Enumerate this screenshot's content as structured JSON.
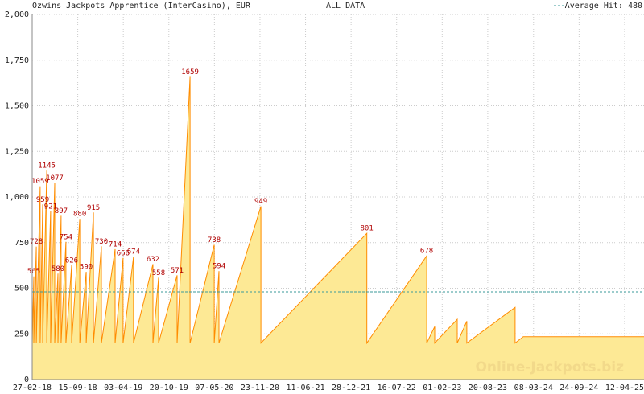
{
  "chart_data": {
    "type": "area",
    "title": "Ozwins Jackpots Apprentice (InterCasino), EUR",
    "subtitle": "ALL DATA",
    "watermark": "Online-Jackpots.biz",
    "average": {
      "value": 480,
      "label": "Average Hit: 480",
      "color": "#3a9a9a"
    },
    "line_color": "#ff8c00",
    "fill_color": "#fde995",
    "label_color": "#b00000",
    "grid": true,
    "ylim": [
      0,
      2000
    ],
    "yticks": [
      0,
      250,
      500,
      750,
      {
        "value": 1000,
        "label": "1,000"
      },
      {
        "value": 1250,
        "label": "1,250"
      },
      {
        "value": 1500,
        "label": "1,500"
      },
      {
        "value": 1750,
        "label": "1,750"
      },
      {
        "value": 2000,
        "label": "2,000"
      }
    ],
    "xlim": [
      "27-02-18",
      "06-07-25"
    ],
    "xticks": [
      "27-02-18",
      "15-09-18",
      "03-04-19",
      "20-10-19",
      "07-05-20",
      "23-11-20",
      "11-06-21",
      "28-12-21",
      "16-07-22",
      "01-02-23",
      "20-08-23",
      "08-03-24",
      "24-09-24",
      "12-04-25"
    ],
    "x": [
      "27-02-18",
      "06-03-18",
      "06-03-18",
      "17-03-18",
      "17-03-18",
      "03-04-18",
      "03-04-18",
      "14-04-18",
      "14-04-18",
      "02-05-18",
      "02-05-18",
      "19-05-18",
      "19-05-18",
      "06-06-18",
      "06-06-18",
      "20-06-18",
      "20-06-18",
      "04-07-18",
      "04-07-18",
      "25-07-18",
      "25-07-18",
      "19-08-18",
      "19-08-18",
      "24-09-18",
      "24-09-18",
      "22-10-18",
      "22-10-18",
      "23-11-18",
      "23-11-18",
      "28-12-18",
      "28-12-18",
      "26-02-19",
      "26-02-19",
      "02-04-19",
      "02-04-19",
      "18-05-19",
      "18-05-19",
      "11-08-19",
      "11-08-19",
      "05-09-19",
      "05-09-19",
      "25-11-19",
      "25-11-19",
      "21-01-20",
      "21-01-20",
      "06-05-20",
      "06-05-20",
      "27-05-20",
      "27-05-20",
      "27-11-20",
      "27-11-20",
      "07-03-22",
      "07-03-22",
      "25-11-22",
      "25-11-22",
      "30-12-22",
      "30-12-22",
      "08-04-23",
      "08-04-23",
      "20-05-23",
      "20-05-23",
      "18-12-23",
      "18-12-23",
      "23-01-24",
      "06-07-25"
    ],
    "values": [
      200,
      565,
      200,
      728,
      200,
      1059,
      200,
      959,
      200,
      1145,
      200,
      921,
      200,
      1077,
      200,
      580,
      200,
      897,
      200,
      754,
      200,
      626,
      200,
      880,
      200,
      590,
      200,
      915,
      200,
      730,
      200,
      714,
      200,
      666,
      200,
      674,
      200,
      632,
      200,
      558,
      200,
      571,
      200,
      1659,
      200,
      738,
      200,
      594,
      200,
      949,
      200,
      801,
      200,
      678,
      200,
      290,
      200,
      330,
      200,
      320,
      200,
      395,
      200,
      235,
      235
    ]
  }
}
